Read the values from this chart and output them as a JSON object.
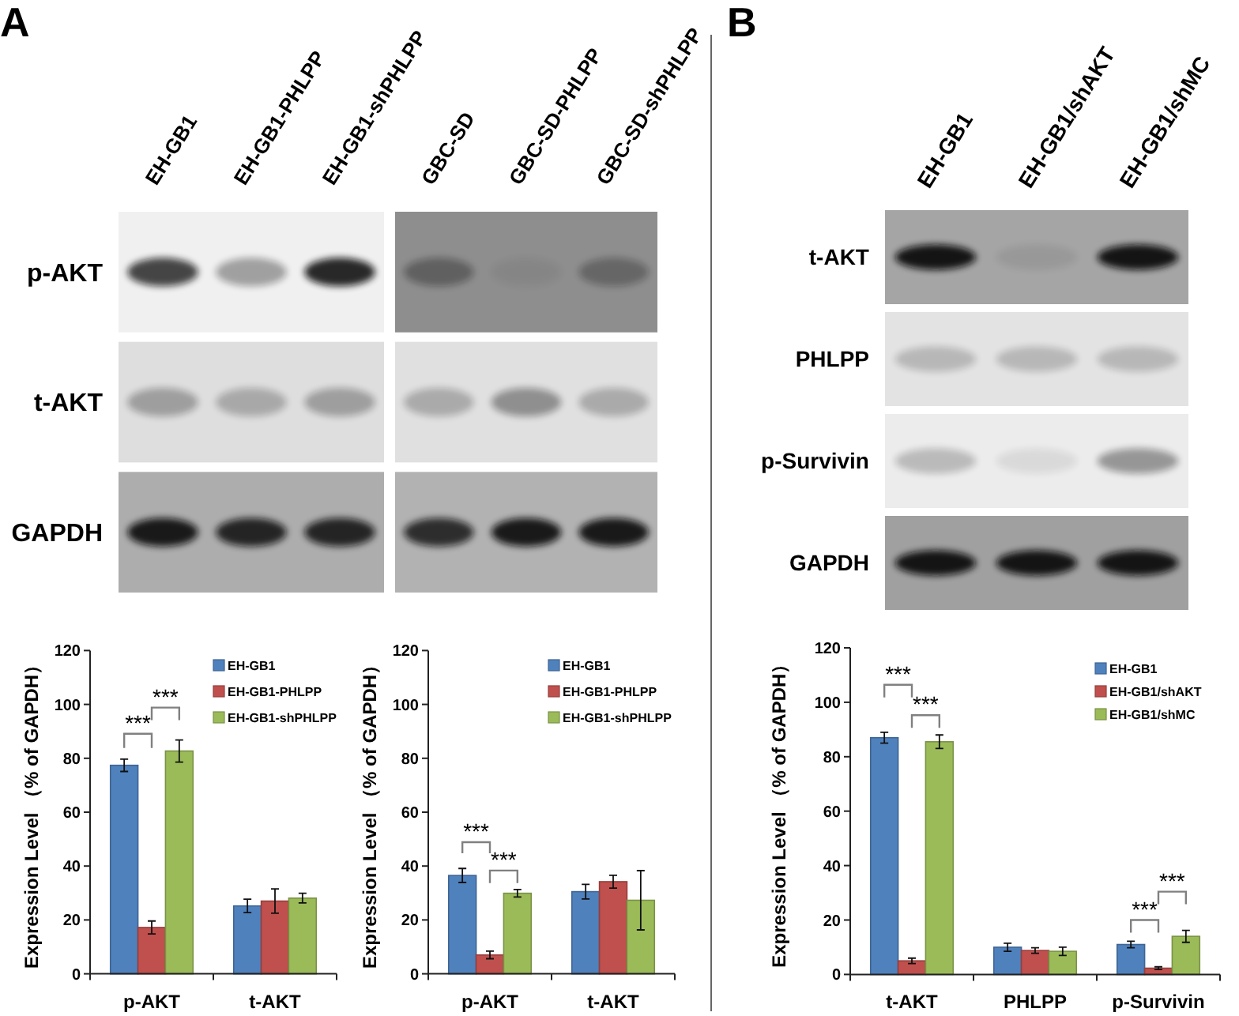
{
  "chart_data": [
    {
      "type": "other",
      "title": "A",
      "categories": [
        "EH-GB1",
        "EH-GB1-PHLPP",
        "EH-GB1-shPHLPP",
        "GBC-SD",
        "GBC-SD-PHLPP",
        "GBC-SD-shPHLPP"
      ],
      "y_categories": [
        "p-AKT",
        "t-AKT",
        "GAPDH"
      ]
    },
    {
      "type": "bar",
      "ylabel": "Expression Level （% of GAPDH）",
      "categories": [
        "p-AKT",
        "t-AKT"
      ],
      "series": [
        {
          "name": "EH-GB1",
          "color": "#4f81bd",
          "values": [
            77.4,
            25.2
          ],
          "errors": [
            2.3,
            2.5
          ]
        },
        {
          "name": "EH-GB1-PHLPP",
          "color": "#c0504d",
          "values": [
            17.2,
            27
          ],
          "errors": [
            2.4,
            4.5
          ]
        },
        {
          "name": "EH-GB1-shPHLPP",
          "color": "#9bbb59",
          "values": [
            82.7,
            28.1
          ],
          "errors": [
            4.1,
            1.8
          ]
        }
      ],
      "ylim": [
        0,
        120
      ],
      "yticks": [
        0,
        20,
        40,
        60,
        80,
        100,
        120
      ],
      "legend": "top right",
      "annotations": [
        "***",
        "***"
      ]
    },
    {
      "type": "bar",
      "ylabel": "Expression Level （% of GAPDH）",
      "categories": [
        "p-AKT",
        "t-AKT"
      ],
      "series": [
        {
          "name": "EH-GB1",
          "color": "#4f81bd",
          "values": [
            36.5,
            30.5
          ],
          "errors": [
            2.6,
            2.7
          ]
        },
        {
          "name": "EH-GB1-PHLPP",
          "color": "#c0504d",
          "values": [
            7,
            34.2
          ],
          "errors": [
            1.4,
            2.4
          ]
        },
        {
          "name": "EH-GB1-shPHLPP",
          "color": "#9bbb59",
          "values": [
            29.9,
            27.3
          ],
          "errors": [
            1.4,
            11
          ]
        }
      ],
      "ylim": [
        0,
        120
      ],
      "yticks": [
        0,
        20,
        40,
        60,
        80,
        100,
        120
      ],
      "legend": "top right",
      "annotations": [
        "***",
        "***"
      ]
    },
    {
      "type": "other",
      "title": "B",
      "categories": [
        "EH-GB1",
        "EH-GB1/shAKT",
        "EH-GB1/shMC"
      ],
      "y_categories": [
        "t-AKT",
        "PHLPP",
        "p-Survivin",
        "GAPDH"
      ]
    },
    {
      "type": "bar",
      "ylabel": "Expression Level （% of GAPDH）",
      "categories": [
        "t-AKT",
        "PHLPP",
        "p-Survivin"
      ],
      "series": [
        {
          "name": "EH-GB1",
          "color": "#4f81bd",
          "values": [
            87,
            10,
            11
          ],
          "errors": [
            2,
            1.5,
            1.2
          ]
        },
        {
          "name": "EH-GB1/shAKT",
          "color": "#c0504d",
          "values": [
            5,
            8.8,
            2.3
          ],
          "errors": [
            1,
            1,
            0.5
          ]
        },
        {
          "name": "EH-GB1/shMC",
          "color": "#9bbb59",
          "values": [
            85.5,
            8.5,
            14
          ],
          "errors": [
            2.5,
            1.5,
            2.2
          ]
        }
      ],
      "ylim": [
        0,
        120
      ],
      "yticks": [
        0,
        20,
        40,
        60,
        80,
        100,
        120
      ],
      "legend": "top right",
      "annotations": [
        "***",
        "***",
        "***",
        "***"
      ]
    }
  ]
}
